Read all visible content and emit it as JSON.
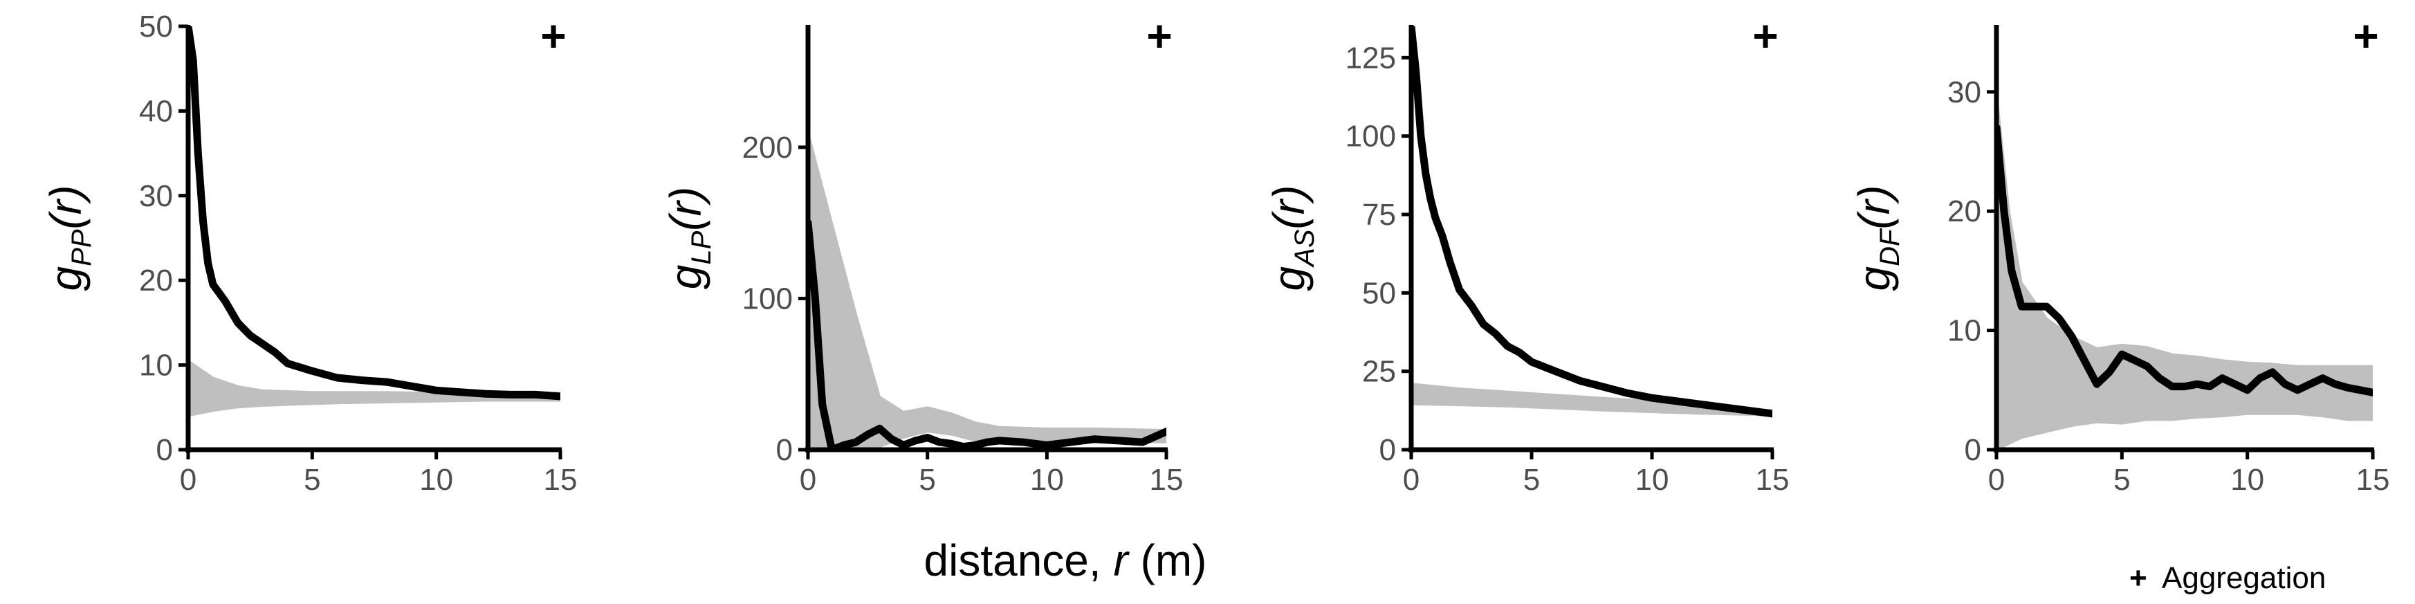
{
  "chart_data": [
    {
      "type": "line",
      "ylabel_main": "g",
      "ylabel_sub": "PP",
      "ylabel_arg": "(r)",
      "xlim": [
        0,
        15
      ],
      "ylim": [
        0,
        50
      ],
      "xticks": [
        0,
        5,
        10,
        15
      ],
      "yticks": [
        0,
        10,
        20,
        30,
        40,
        50
      ],
      "marker": "+",
      "envelope": {
        "x": [
          0,
          1,
          2,
          3,
          4,
          5,
          6,
          8,
          10,
          12,
          15
        ],
        "lower": [
          4,
          4.6,
          5.0,
          5.2,
          5.3,
          5.4,
          5.5,
          5.6,
          5.7,
          5.8,
          5.8
        ],
        "upper": [
          10.5,
          8.5,
          7.5,
          7.0,
          6.9,
          6.8,
          6.8,
          6.8,
          6.7,
          6.7,
          6.7
        ]
      },
      "series": [
        {
          "x": [
            0,
            0.2,
            0.4,
            0.6,
            0.8,
            1.0,
            1.5,
            2.0,
            2.5,
            3.0,
            3.5,
            4.0,
            5.0,
            6.0,
            7.0,
            8.0,
            9.0,
            10.0,
            11.0,
            12.0,
            13.0,
            14.0,
            15.0
          ],
          "y": [
            50,
            46,
            35,
            27,
            22,
            19.5,
            17.5,
            15,
            13.5,
            12.5,
            11.5,
            10.2,
            9.3,
            8.5,
            8.2,
            8.0,
            7.5,
            7.0,
            6.8,
            6.6,
            6.5,
            6.5,
            6.3
          ]
        }
      ]
    },
    {
      "type": "line",
      "ylabel_main": "g",
      "ylabel_sub": "LP",
      "ylabel_arg": "(r)",
      "xlim": [
        0,
        15
      ],
      "ylim": [
        0,
        280
      ],
      "xticks": [
        0,
        5,
        10,
        15
      ],
      "yticks": [
        0,
        100,
        200
      ],
      "marker": "+",
      "envelope": {
        "x": [
          0,
          0.5,
          1,
          2,
          3,
          4,
          5,
          6,
          7,
          8,
          10,
          12,
          15
        ],
        "lower": [
          0,
          0,
          0,
          0,
          2,
          8,
          12,
          10,
          6,
          5,
          5,
          5,
          5
        ],
        "upper": [
          210,
          180,
          150,
          90,
          35,
          25,
          28,
          24,
          18,
          15,
          14,
          14,
          13
        ]
      },
      "series": [
        {
          "x": [
            0,
            0.3,
            0.6,
            1.0,
            1.5,
            2,
            2.5,
            3,
            3.5,
            4,
            4.5,
            5,
            5.5,
            6,
            6.5,
            7,
            7.5,
            8,
            9,
            10,
            11,
            12,
            13,
            14,
            15
          ],
          "y": [
            150,
            100,
            30,
            0,
            3,
            5,
            10,
            14,
            7,
            3,
            6,
            8,
            5,
            4,
            2,
            3,
            5,
            6,
            5,
            3,
            5,
            7,
            6,
            5,
            12
          ]
        }
      ]
    },
    {
      "type": "line",
      "ylabel_main": "g",
      "ylabel_sub": "AS",
      "ylabel_arg": "(r)",
      "xlim": [
        0,
        15
      ],
      "ylim": [
        0,
        135
      ],
      "xticks": [
        0,
        5,
        10,
        15
      ],
      "yticks": [
        0,
        25,
        50,
        75,
        100,
        125
      ],
      "marker": "+",
      "envelope": {
        "x": [
          0,
          2,
          4,
          6,
          8,
          10,
          12,
          15
        ],
        "lower": [
          14.5,
          14.2,
          13.8,
          13.2,
          12.5,
          12.0,
          11.5,
          11.0
        ],
        "upper": [
          21,
          19.5,
          18.5,
          17.5,
          16.5,
          15.5,
          14.0,
          12.5
        ]
      },
      "series": [
        {
          "x": [
            0,
            0.2,
            0.4,
            0.6,
            0.8,
            1.0,
            1.3,
            1.6,
            2.0,
            2.5,
            3.0,
            3.5,
            4.0,
            4.5,
            5.0,
            6.0,
            7.0,
            8.0,
            9.0,
            10.0,
            11.0,
            12.0,
            13.0,
            14.0,
            15.0
          ],
          "y": [
            135,
            120,
            100,
            88,
            80,
            74,
            68,
            60,
            51,
            46,
            40,
            37,
            33,
            31,
            28,
            25,
            22,
            20,
            18,
            16.5,
            15.5,
            14.5,
            13.5,
            12.5,
            11.5
          ]
        }
      ]
    },
    {
      "type": "line",
      "ylabel_main": "g",
      "ylabel_sub": "DF",
      "ylabel_arg": "(r)",
      "xlim": [
        0,
        15
      ],
      "ylim": [
        0,
        35.5
      ],
      "xticks": [
        0,
        5,
        10,
        15
      ],
      "yticks": [
        0,
        10,
        20,
        30
      ],
      "marker": "+",
      "envelope": {
        "x": [
          0,
          0.5,
          1,
          2,
          3,
          4,
          5,
          6,
          7,
          8,
          9,
          10,
          11,
          12,
          13,
          14,
          15
        ],
        "lower": [
          0,
          0.5,
          1.0,
          1.5,
          2.0,
          2.3,
          2.2,
          2.5,
          2.5,
          2.7,
          2.8,
          3.0,
          3.0,
          3.0,
          2.8,
          2.5,
          2.5
        ],
        "upper": [
          30,
          20,
          14,
          11,
          9.5,
          8.5,
          8.8,
          8.6,
          8.0,
          7.8,
          7.5,
          7.3,
          7.2,
          7.0,
          7.0,
          7.0,
          7.0
        ]
      },
      "series": [
        {
          "x": [
            0,
            0.3,
            0.6,
            1.0,
            1.5,
            2.0,
            2.5,
            3.0,
            3.5,
            4.0,
            4.5,
            5.0,
            5.5,
            6.0,
            6.5,
            7.0,
            7.5,
            8.0,
            8.5,
            9.0,
            9.5,
            10.0,
            10.5,
            11.0,
            11.5,
            12.0,
            12.5,
            13.0,
            13.5,
            14.0,
            14.5,
            15.0
          ],
          "y": [
            27,
            20,
            15,
            12,
            12,
            12,
            11,
            9.5,
            7.5,
            5.5,
            6.5,
            8.0,
            7.5,
            7.0,
            6.0,
            5.3,
            5.3,
            5.5,
            5.3,
            6.0,
            5.5,
            5.0,
            6.0,
            6.5,
            5.5,
            5.0,
            5.5,
            6.0,
            5.5,
            5.2,
            5.0,
            4.8
          ]
        }
      ]
    }
  ],
  "xlabel_pre": "distance, ",
  "xlabel_var": "r",
  "xlabel_post": " (m)",
  "legend": {
    "symbol": "+",
    "label": "Aggregation"
  },
  "colors": {
    "observed": "#000000",
    "envelope": "#bfbfbf",
    "axis": "#000000",
    "tick_text": "#4d4d4d"
  }
}
